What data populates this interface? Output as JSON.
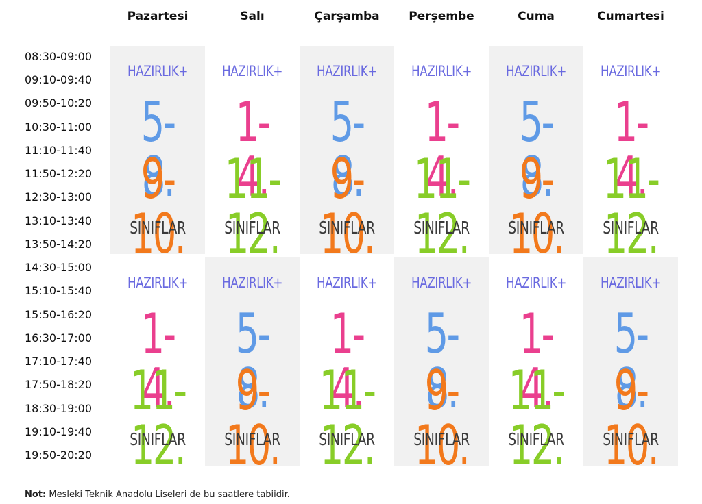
{
  "days": [
    "Pazartesi",
    "Salı",
    "Çarşamba",
    "Perşembe",
    "Cuma",
    "Cumartesi"
  ],
  "times": [
    "08:30-09:00",
    "09:10-09:40",
    "09:50-10:20",
    "10:30-11:00",
    "11:10-11:40",
    "11:50-12:20",
    "12:30-13:00",
    "13:10-13:40",
    "13:50-14:20",
    "14:30-15:00",
    "15:10-15:40",
    "15:50-16:20",
    "16:30-17:00",
    "17:10-17:40",
    "17:50-18:20",
    "18:30-19:00",
    "19:10-19:40",
    "19:50-20:20"
  ],
  "labels": {
    "hazirlik": "HAZIRLIK+",
    "g58": "5-8.",
    "g910": "9-10.",
    "g14": "1-4.",
    "g1112": "11-12.",
    "siniflar": "SINIFLAR"
  },
  "colors": {
    "hazirlik": "#6a6ae0",
    "g58": "#5f9ae6",
    "g910": "#f2791c",
    "g14": "#ea3f8e",
    "g1112": "#88cd28",
    "siniflar": "#3a3a3a",
    "shade": "#f1f1f1"
  },
  "note": {
    "label": "Not:",
    "text": " Mesleki Teknik Anadolu Liseleri de bu saatlere tabiidir."
  }
}
